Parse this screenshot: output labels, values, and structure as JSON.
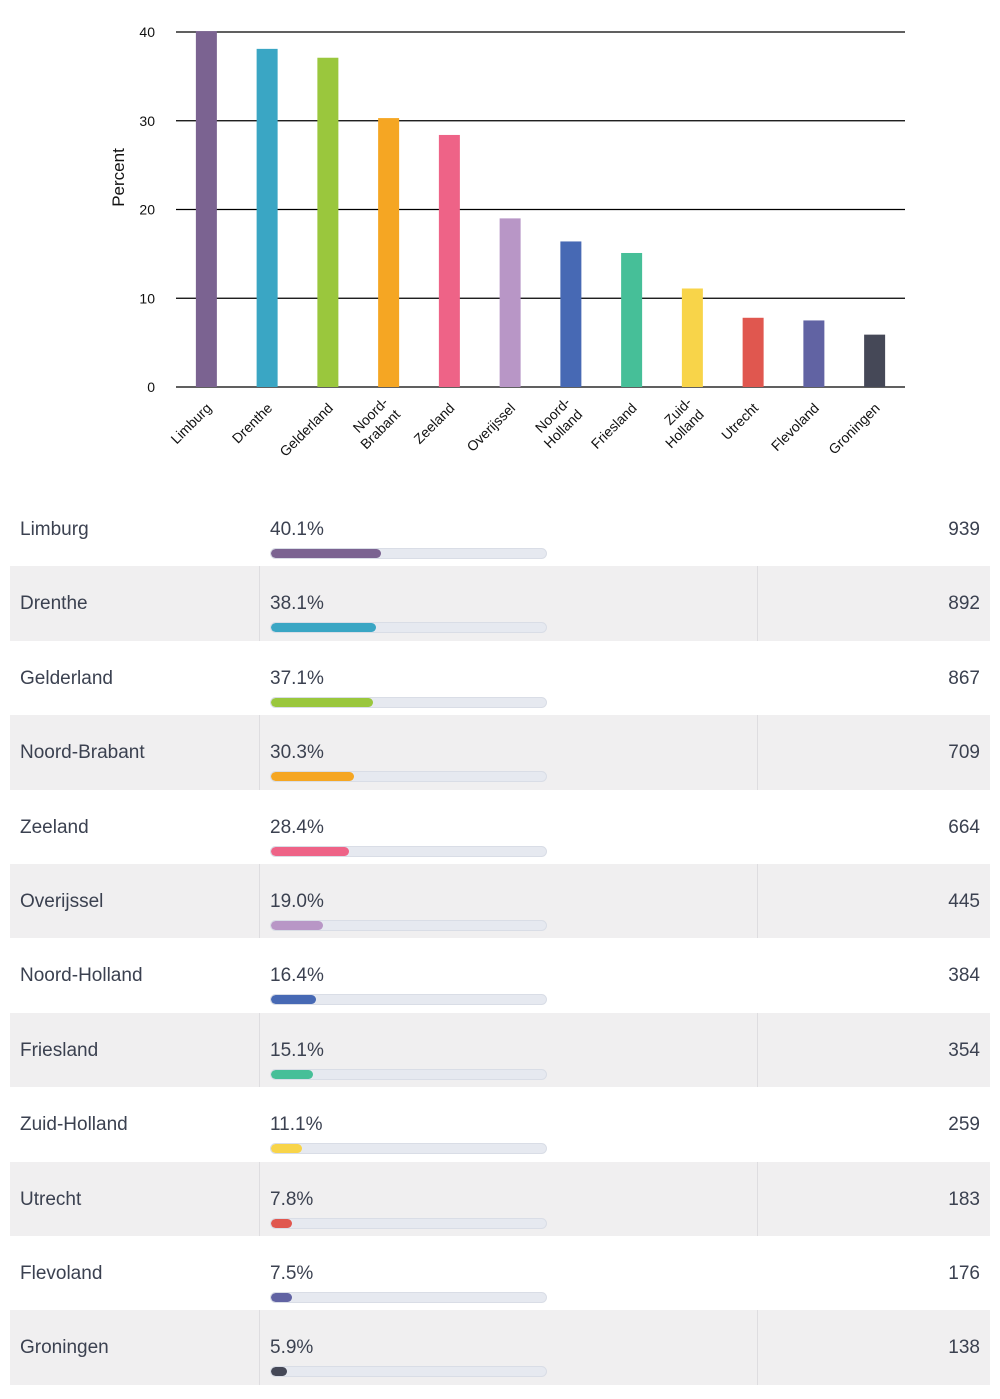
{
  "chart_data": {
    "type": "bar",
    "ylabel": "Percent",
    "xlabel": "",
    "ylim": [
      0,
      40
    ],
    "yticks": [
      0,
      10,
      20,
      30,
      40
    ],
    "grid": true,
    "categories": [
      {
        "label": "Limburg",
        "lines": [
          "Limburg"
        ]
      },
      {
        "label": "Drenthe",
        "lines": [
          "Drenthe"
        ]
      },
      {
        "label": "Gelderland",
        "lines": [
          "Gelderland"
        ]
      },
      {
        "label": "Noord-Brabant",
        "lines": [
          "Noord-",
          "Brabant"
        ]
      },
      {
        "label": "Zeeland",
        "lines": [
          "Zeeland"
        ]
      },
      {
        "label": "Overijssel",
        "lines": [
          "Overijssel"
        ]
      },
      {
        "label": "Noord-Holland",
        "lines": [
          "Noord-",
          "Holland"
        ]
      },
      {
        "label": "Friesland",
        "lines": [
          "Friesland"
        ]
      },
      {
        "label": "Zuid-Holland",
        "lines": [
          "Zuid-",
          "Holland"
        ]
      },
      {
        "label": "Utrecht",
        "lines": [
          "Utrecht"
        ]
      },
      {
        "label": "Flevoland",
        "lines": [
          "Flevoland"
        ]
      },
      {
        "label": "Groningen",
        "lines": [
          "Groningen"
        ]
      }
    ],
    "values": [
      40.1,
      38.1,
      37.1,
      30.3,
      28.4,
      19.0,
      16.4,
      15.1,
      11.1,
      7.8,
      7.5,
      5.9
    ],
    "colors": [
      "#7b6391",
      "#3aa6c4",
      "#9ac73d",
      "#f5a623",
      "#ee6387",
      "#b896c6",
      "#4769b4",
      "#46bf98",
      "#f8d449",
      "#e0574f",
      "#6163a3",
      "#454857"
    ]
  },
  "table": {
    "rows": [
      {
        "name": "Limburg",
        "percent_text": "40.1%",
        "percent": 40.1,
        "count": "939",
        "color": "#7b6391"
      },
      {
        "name": "Drenthe",
        "percent_text": "38.1%",
        "percent": 38.1,
        "count": "892",
        "color": "#3aa6c4"
      },
      {
        "name": "Gelderland",
        "percent_text": "37.1%",
        "percent": 37.1,
        "count": "867",
        "color": "#9ac73d"
      },
      {
        "name": "Noord-Brabant",
        "percent_text": "30.3%",
        "percent": 30.3,
        "count": "709",
        "color": "#f5a623"
      },
      {
        "name": "Zeeland",
        "percent_text": "28.4%",
        "percent": 28.4,
        "count": "664",
        "color": "#ee6387"
      },
      {
        "name": "Overijssel",
        "percent_text": "19.0%",
        "percent": 19.0,
        "count": "445",
        "color": "#b896c6"
      },
      {
        "name": "Noord-Holland",
        "percent_text": "16.4%",
        "percent": 16.4,
        "count": "384",
        "color": "#4769b4"
      },
      {
        "name": "Friesland",
        "percent_text": "15.1%",
        "percent": 15.1,
        "count": "354",
        "color": "#46bf98"
      },
      {
        "name": "Zuid-Holland",
        "percent_text": "11.1%",
        "percent": 11.1,
        "count": "259",
        "color": "#f8d449"
      },
      {
        "name": "Utrecht",
        "percent_text": "7.8%",
        "percent": 7.8,
        "count": "183",
        "color": "#e0574f"
      },
      {
        "name": "Flevoland",
        "percent_text": "7.5%",
        "percent": 7.5,
        "count": "176",
        "color": "#6163a3"
      },
      {
        "name": "Groningen",
        "percent_text": "5.9%",
        "percent": 5.9,
        "count": "138",
        "color": "#454857"
      }
    ]
  }
}
